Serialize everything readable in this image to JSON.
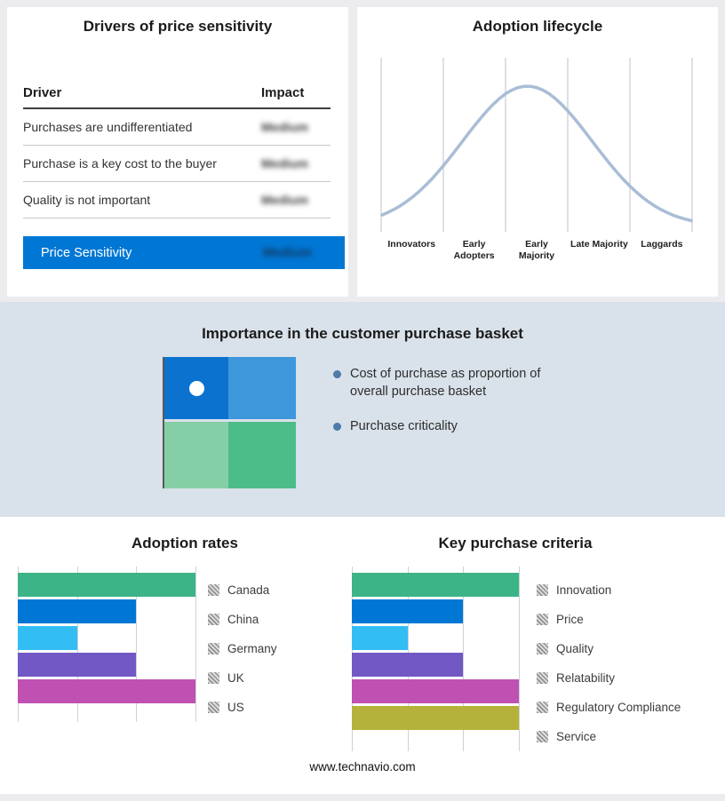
{
  "footer": {
    "text": "www.technavio.com"
  },
  "drivers": {
    "title": "Drivers of price sensitivity",
    "columns": {
      "driver": "Driver",
      "impact": "Impact"
    },
    "rows": [
      {
        "driver": "Purchases are undifferentiated",
        "impact": "Medium"
      },
      {
        "driver": "Purchase is a key cost to the buyer",
        "impact": "Medium"
      },
      {
        "driver": "Quality is not important",
        "impact": "Medium"
      }
    ],
    "summary": {
      "label": "Price Sensitivity",
      "impact": "Medium"
    },
    "accent_color": "#0077d4",
    "impact_values_obscured": true
  },
  "basket": {
    "title": "Importance in the customer purchase basket",
    "bullets": [
      "Cost of purchase as proportion of overall purchase basket",
      "Purchase criticality"
    ],
    "quadrant_colors": {
      "top_left": "#0b73cf",
      "top_right": "#3e97da",
      "bottom_left": "#85cfa6",
      "bottom_right": "#4cbd88"
    },
    "marker": "white-dot-in-top-left-quadrant",
    "band_color": "#d9e1ea"
  },
  "chart_data": [
    {
      "type": "line",
      "title": "Adoption lifecycle",
      "x_categories": [
        "Innovators",
        "Early Adopters",
        "Early Majority",
        "Late Majority",
        "Laggards"
      ],
      "description": "Bell-shaped adoption curve peaking at Early Majority",
      "bell": {
        "peak_x": 0.47,
        "sigma": 0.21
      },
      "curve_color": "#a9bdd6",
      "grid": true,
      "xlabel": "",
      "ylabel": ""
    },
    {
      "type": "bar",
      "orientation": "horizontal",
      "title": "Adoption rates",
      "categories": [
        "Canada",
        "China",
        "Germany",
        "UK",
        "US"
      ],
      "values": [
        3,
        2,
        1,
        2,
        3
      ],
      "xlim": [
        0,
        3
      ],
      "gridlines": 4,
      "colors": [
        "#3cb487",
        "#0077d4",
        "#33bdf5",
        "#7158c4",
        "#bf51b2"
      ],
      "legend_position": "right",
      "legend_swatch": "gray-hatched"
    },
    {
      "type": "bar",
      "orientation": "horizontal",
      "title": "Key purchase criteria",
      "categories": [
        "Innovation",
        "Price",
        "Quality",
        "Relatability",
        "Regulatory Compliance",
        "Service"
      ],
      "values": [
        3,
        2,
        1,
        2,
        3,
        3
      ],
      "xlim": [
        0,
        3
      ],
      "gridlines": 4,
      "colors": [
        "#3cb487",
        "#0077d4",
        "#33bdf5",
        "#7158c4",
        "#bf51b2",
        "#b5b23b"
      ],
      "legend_position": "right",
      "legend_swatch": "gray-hatched"
    }
  ]
}
